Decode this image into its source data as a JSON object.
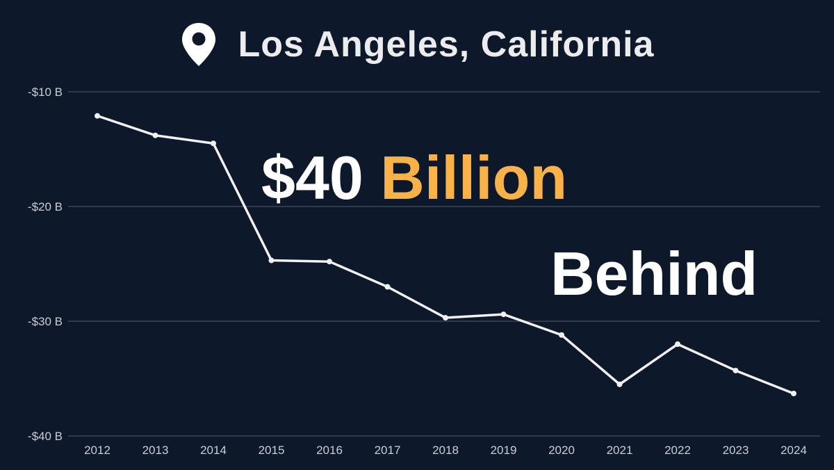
{
  "title": "Los Angeles, California",
  "headline": {
    "amount": "$40",
    "unit": "Billion",
    "word": "Behind"
  },
  "colors": {
    "background": "#0e182b",
    "line": "#f2f2f2",
    "grid": "#3a4557",
    "accent": "#f9b248"
  },
  "icons": {
    "title_icon": "map-pin-icon"
  },
  "chart_data": {
    "type": "line",
    "x": [
      "2012",
      "2013",
      "2014",
      "2015",
      "2016",
      "2017",
      "2018",
      "2019",
      "2020",
      "2021",
      "2022",
      "2023",
      "2024"
    ],
    "series": [
      {
        "values": [
          -12.1,
          -13.8,
          -14.5,
          -24.7,
          -24.8,
          -27.0,
          -29.7,
          -29.4,
          -31.2,
          -35.5,
          -32.0,
          -34.3,
          -36.3
        ]
      }
    ],
    "ylim": [
      -40,
      -10
    ],
    "yticks": [
      -10,
      -20,
      -30,
      -40
    ],
    "ytick_labels": [
      "-$10 B",
      "-$20 B",
      "-$30 B",
      "-$40 B"
    ],
    "grid": "horizontal",
    "legend": "none",
    "xlabel": "",
    "ylabel": ""
  }
}
